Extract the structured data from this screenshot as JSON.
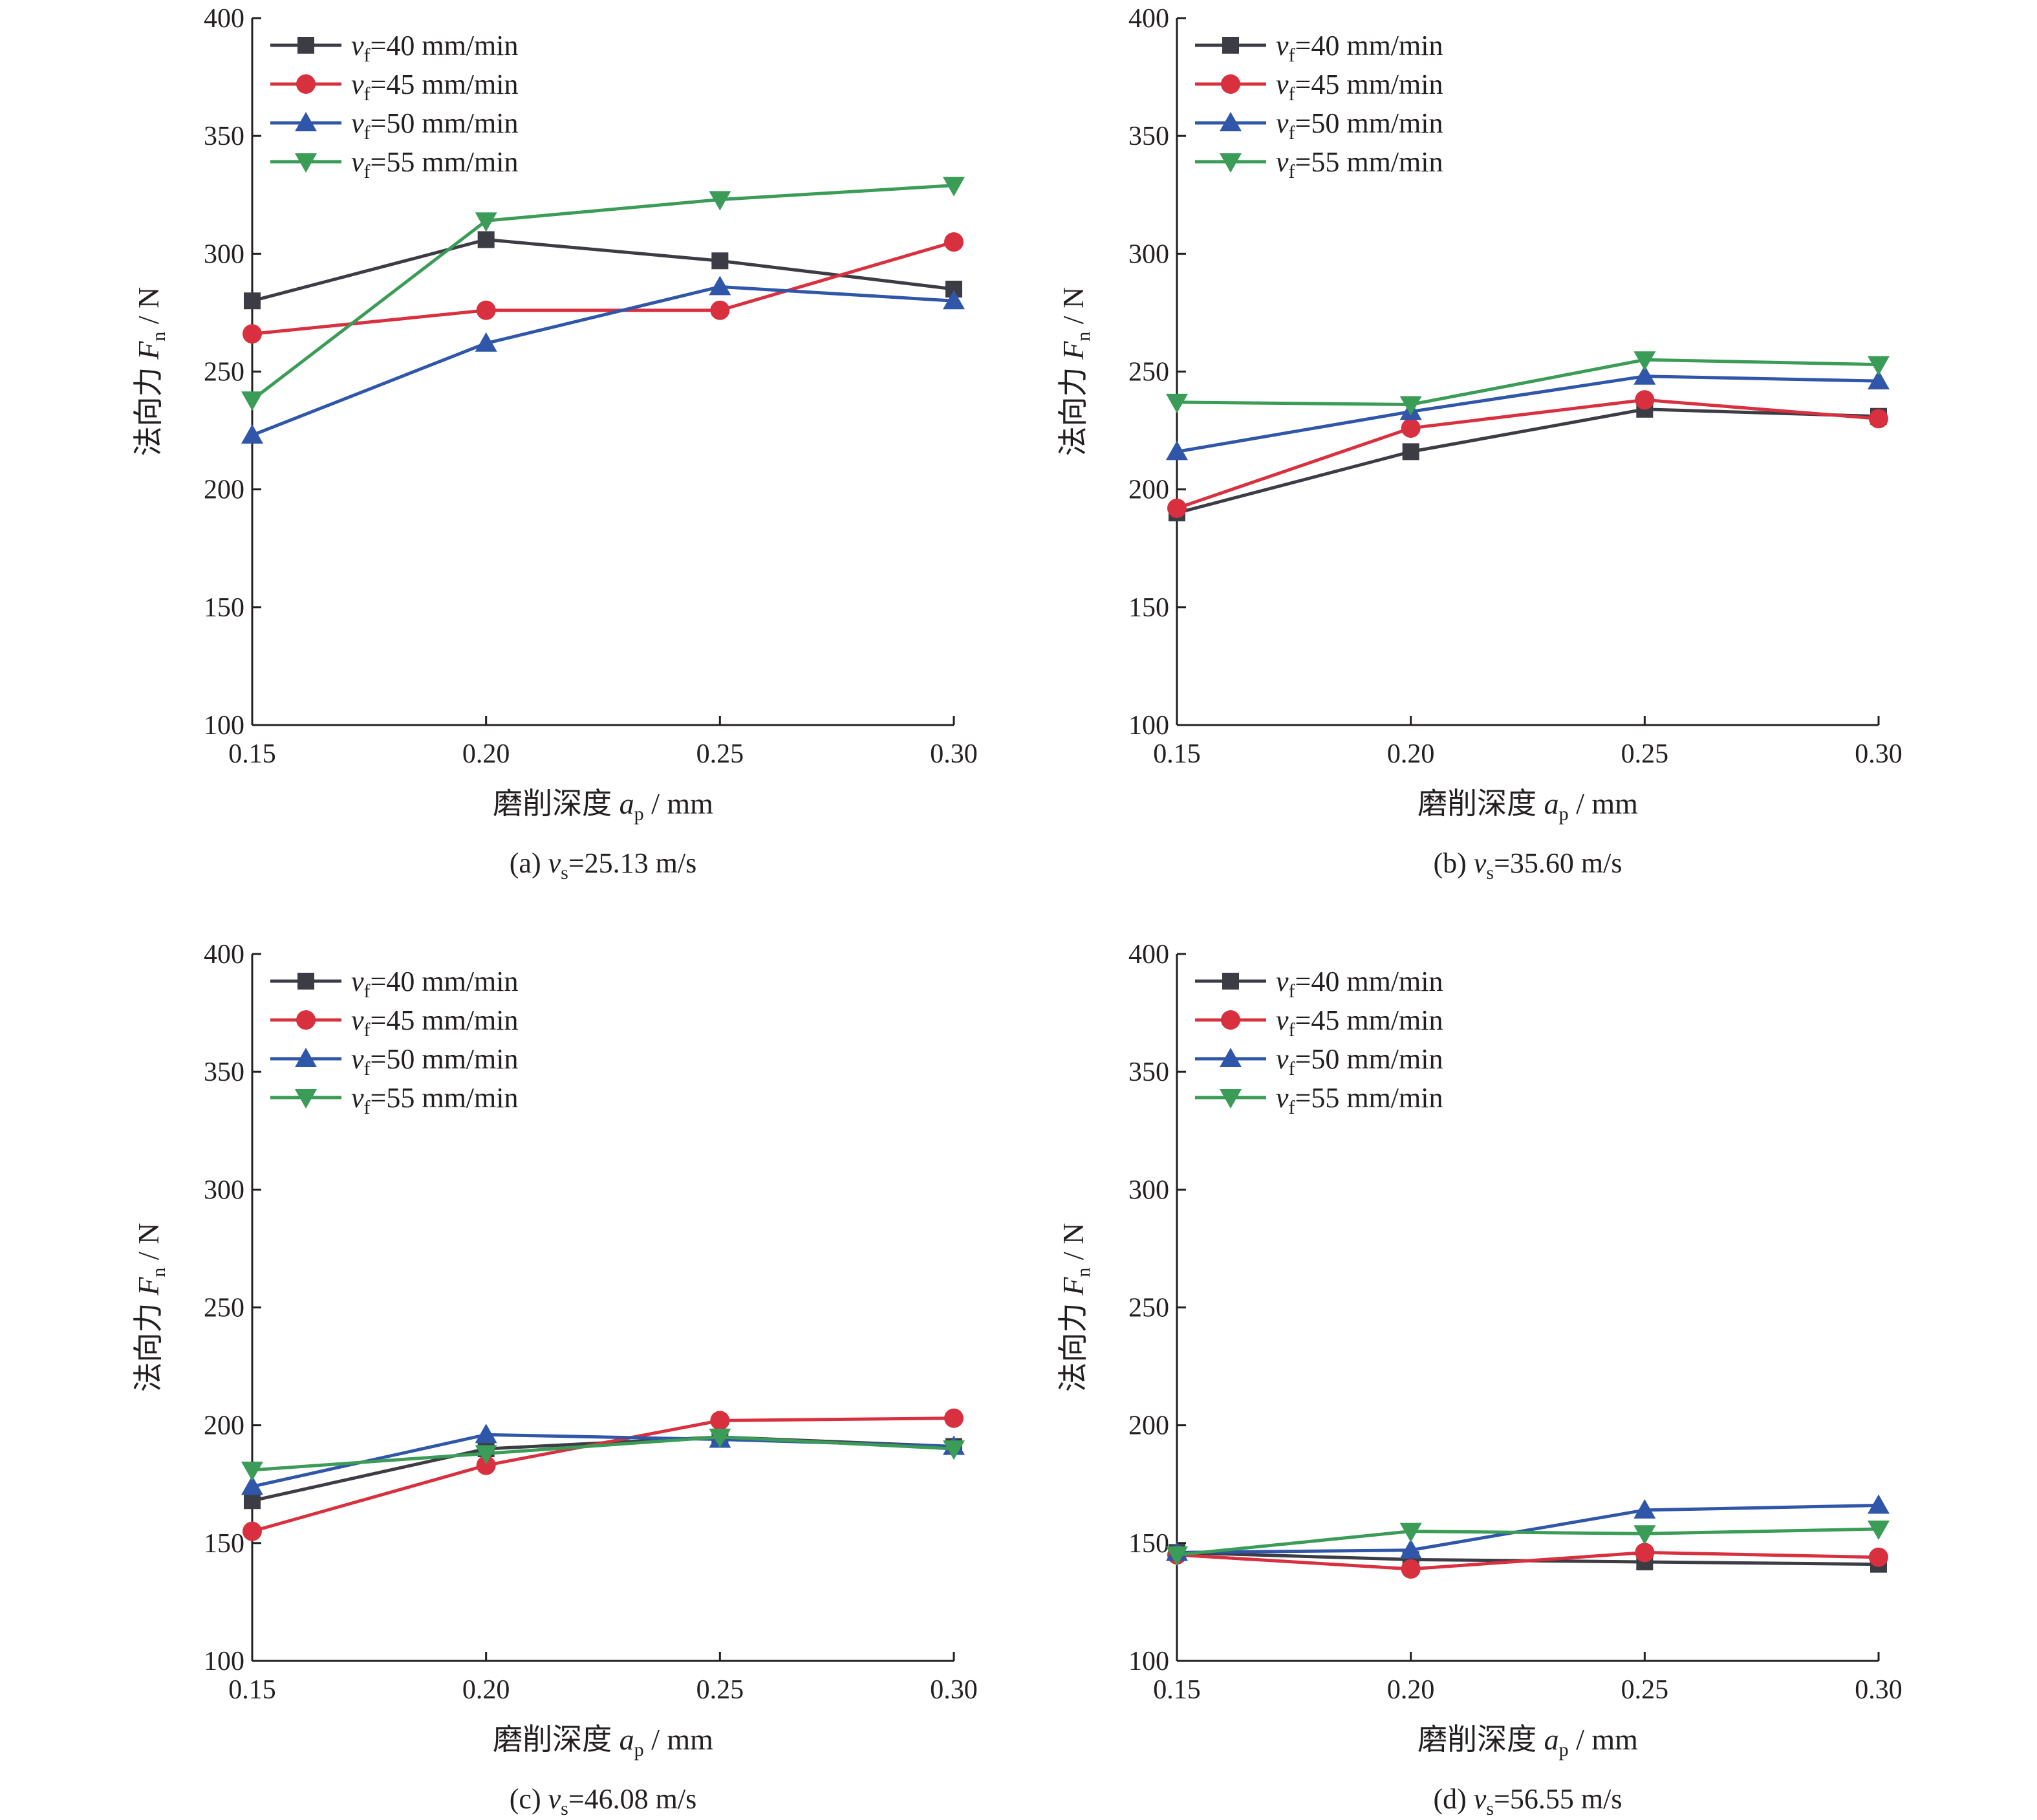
{
  "colors": {
    "series": [
      "#3c3c44",
      "#d9303f",
      "#2f56a8",
      "#3a9c57"
    ],
    "axis": "#231f20",
    "background": "#ffffff"
  },
  "series_markers": [
    "square",
    "circle",
    "triangle-up",
    "triangle-down"
  ],
  "chart_data": [
    {
      "panel": "a",
      "type": "line",
      "caption": {
        "prefix": "(a) ",
        "var": "v",
        "sub": "s",
        "value": "=25.13 m/s"
      },
      "xlabel": {
        "text": "磨削深度 ",
        "var": "a",
        "sub": "p",
        "unit": " / mm"
      },
      "ylabel": {
        "text": "法向力 ",
        "var": "F",
        "sub": "n",
        "unit": " / N"
      },
      "x": [
        0.15,
        0.2,
        0.25,
        0.3
      ],
      "xticks": [
        "0.15",
        "0.20",
        "0.25",
        "0.30"
      ],
      "yticks": [
        "100",
        "150",
        "200",
        "250",
        "300",
        "350",
        "400"
      ],
      "xlim": [
        0.15,
        0.3
      ],
      "ylim": [
        100,
        400
      ],
      "legend_position": "top-left",
      "series": [
        {
          "label": {
            "var": "v",
            "sub": "f",
            "value": "=40 mm/min"
          },
          "values": [
            280,
            306,
            297,
            285
          ]
        },
        {
          "label": {
            "var": "v",
            "sub": "f",
            "value": "=45 mm/min"
          },
          "values": [
            266,
            276,
            276,
            305
          ]
        },
        {
          "label": {
            "var": "v",
            "sub": "f",
            "value": "=50 mm/min"
          },
          "values": [
            223,
            262,
            286,
            280
          ]
        },
        {
          "label": {
            "var": "v",
            "sub": "f",
            "value": "=55 mm/min"
          },
          "values": [
            238,
            314,
            323,
            329
          ]
        }
      ]
    },
    {
      "panel": "b",
      "type": "line",
      "caption": {
        "prefix": "(b) ",
        "var": "v",
        "sub": "s",
        "value": "=35.60 m/s"
      },
      "xlabel": {
        "text": "磨削深度 ",
        "var": "a",
        "sub": "p",
        "unit": " / mm"
      },
      "ylabel": {
        "text": "法向力 ",
        "var": "F",
        "sub": "n",
        "unit": " / N"
      },
      "x": [
        0.15,
        0.2,
        0.25,
        0.3
      ],
      "xticks": [
        "0.15",
        "0.20",
        "0.25",
        "0.30"
      ],
      "yticks": [
        "100",
        "150",
        "200",
        "250",
        "300",
        "350",
        "400"
      ],
      "xlim": [
        0.15,
        0.3
      ],
      "ylim": [
        100,
        400
      ],
      "legend_position": "top-left",
      "series": [
        {
          "label": {
            "var": "v",
            "sub": "f",
            "value": "=40 mm/min"
          },
          "values": [
            190,
            216,
            234,
            231
          ]
        },
        {
          "label": {
            "var": "v",
            "sub": "f",
            "value": "=45 mm/min"
          },
          "values": [
            192,
            226,
            238,
            230
          ]
        },
        {
          "label": {
            "var": "v",
            "sub": "f",
            "value": "=50 mm/min"
          },
          "values": [
            216,
            233,
            248,
            246
          ]
        },
        {
          "label": {
            "var": "v",
            "sub": "f",
            "value": "=55 mm/min"
          },
          "values": [
            237,
            236,
            255,
            253
          ]
        }
      ]
    },
    {
      "panel": "c",
      "type": "line",
      "caption": {
        "prefix": "(c) ",
        "var": "v",
        "sub": "s",
        "value": "=46.08 m/s"
      },
      "xlabel": {
        "text": "磨削深度 ",
        "var": "a",
        "sub": "p",
        "unit": " / mm"
      },
      "ylabel": {
        "text": "法向力 ",
        "var": "F",
        "sub": "n",
        "unit": " / N"
      },
      "x": [
        0.15,
        0.2,
        0.25,
        0.3
      ],
      "xticks": [
        "0.15",
        "0.20",
        "0.25",
        "0.30"
      ],
      "yticks": [
        "100",
        "150",
        "200",
        "250",
        "300",
        "350",
        "400"
      ],
      "xlim": [
        0.15,
        0.3
      ],
      "ylim": [
        100,
        400
      ],
      "legend_position": "top-left",
      "series": [
        {
          "label": {
            "var": "v",
            "sub": "f",
            "value": "=40 mm/min"
          },
          "values": [
            168,
            190,
            195,
            191
          ]
        },
        {
          "label": {
            "var": "v",
            "sub": "f",
            "value": "=45 mm/min"
          },
          "values": [
            155,
            183,
            202,
            203
          ]
        },
        {
          "label": {
            "var": "v",
            "sub": "f",
            "value": "=50 mm/min"
          },
          "values": [
            174,
            196,
            194,
            191
          ]
        },
        {
          "label": {
            "var": "v",
            "sub": "f",
            "value": "=55 mm/min"
          },
          "values": [
            181,
            188,
            195,
            190
          ]
        }
      ]
    },
    {
      "panel": "d",
      "type": "line",
      "caption": {
        "prefix": "(d) ",
        "var": "v",
        "sub": "s",
        "value": "=56.55 m/s"
      },
      "xlabel": {
        "text": "磨削深度 ",
        "var": "a",
        "sub": "p",
        "unit": " / mm"
      },
      "ylabel": {
        "text": "法向力 ",
        "var": "F",
        "sub": "n",
        "unit": " / N"
      },
      "x": [
        0.15,
        0.2,
        0.25,
        0.3
      ],
      "xticks": [
        "0.15",
        "0.20",
        "0.25",
        "0.30"
      ],
      "yticks": [
        "100",
        "150",
        "200",
        "250",
        "300",
        "350",
        "400"
      ],
      "xlim": [
        0.15,
        0.3
      ],
      "ylim": [
        100,
        400
      ],
      "legend_position": "top-left",
      "series": [
        {
          "label": {
            "var": "v",
            "sub": "f",
            "value": "=40 mm/min"
          },
          "values": [
            146,
            143,
            142,
            141
          ]
        },
        {
          "label": {
            "var": "v",
            "sub": "f",
            "value": "=45 mm/min"
          },
          "values": [
            145,
            139,
            146,
            144
          ]
        },
        {
          "label": {
            "var": "v",
            "sub": "f",
            "value": "=50 mm/min"
          },
          "values": [
            146,
            147,
            164,
            166
          ]
        },
        {
          "label": {
            "var": "v",
            "sub": "f",
            "value": "=55 mm/min"
          },
          "values": [
            145,
            155,
            154,
            156
          ]
        }
      ]
    }
  ]
}
